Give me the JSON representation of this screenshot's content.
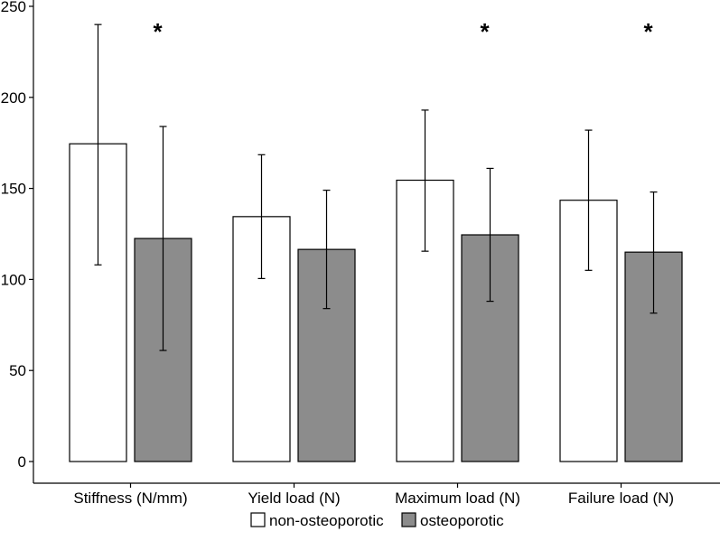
{
  "chart_data": {
    "type": "bar",
    "title": "",
    "xlabel": "",
    "ylabel": "",
    "ylim": [
      0,
      250
    ],
    "yticks": [
      0,
      50,
      100,
      150,
      200,
      250
    ],
    "grid": false,
    "legend_position": "bottom",
    "categories": [
      "Stiffness (N/mm)",
      "Yield load (N)",
      "Maximum load (N)",
      "Failure load (N)"
    ],
    "series": [
      {
        "name": "non-osteoporotic",
        "color": "#ffffff",
        "values": [
          174.5,
          134.5,
          154.5,
          143.5
        ],
        "error_low": [
          108,
          100.5,
          115.5,
          105
        ],
        "error_high": [
          240,
          168.5,
          193,
          182
        ]
      },
      {
        "name": "osteoporotic",
        "color": "#8c8c8c",
        "values": [
          122.5,
          116.5,
          124.5,
          115
        ],
        "error_low": [
          61,
          84,
          88,
          81.5
        ],
        "error_high": [
          184,
          149,
          161,
          148
        ]
      }
    ],
    "significance": [
      "*",
      "",
      "*",
      "*"
    ]
  }
}
